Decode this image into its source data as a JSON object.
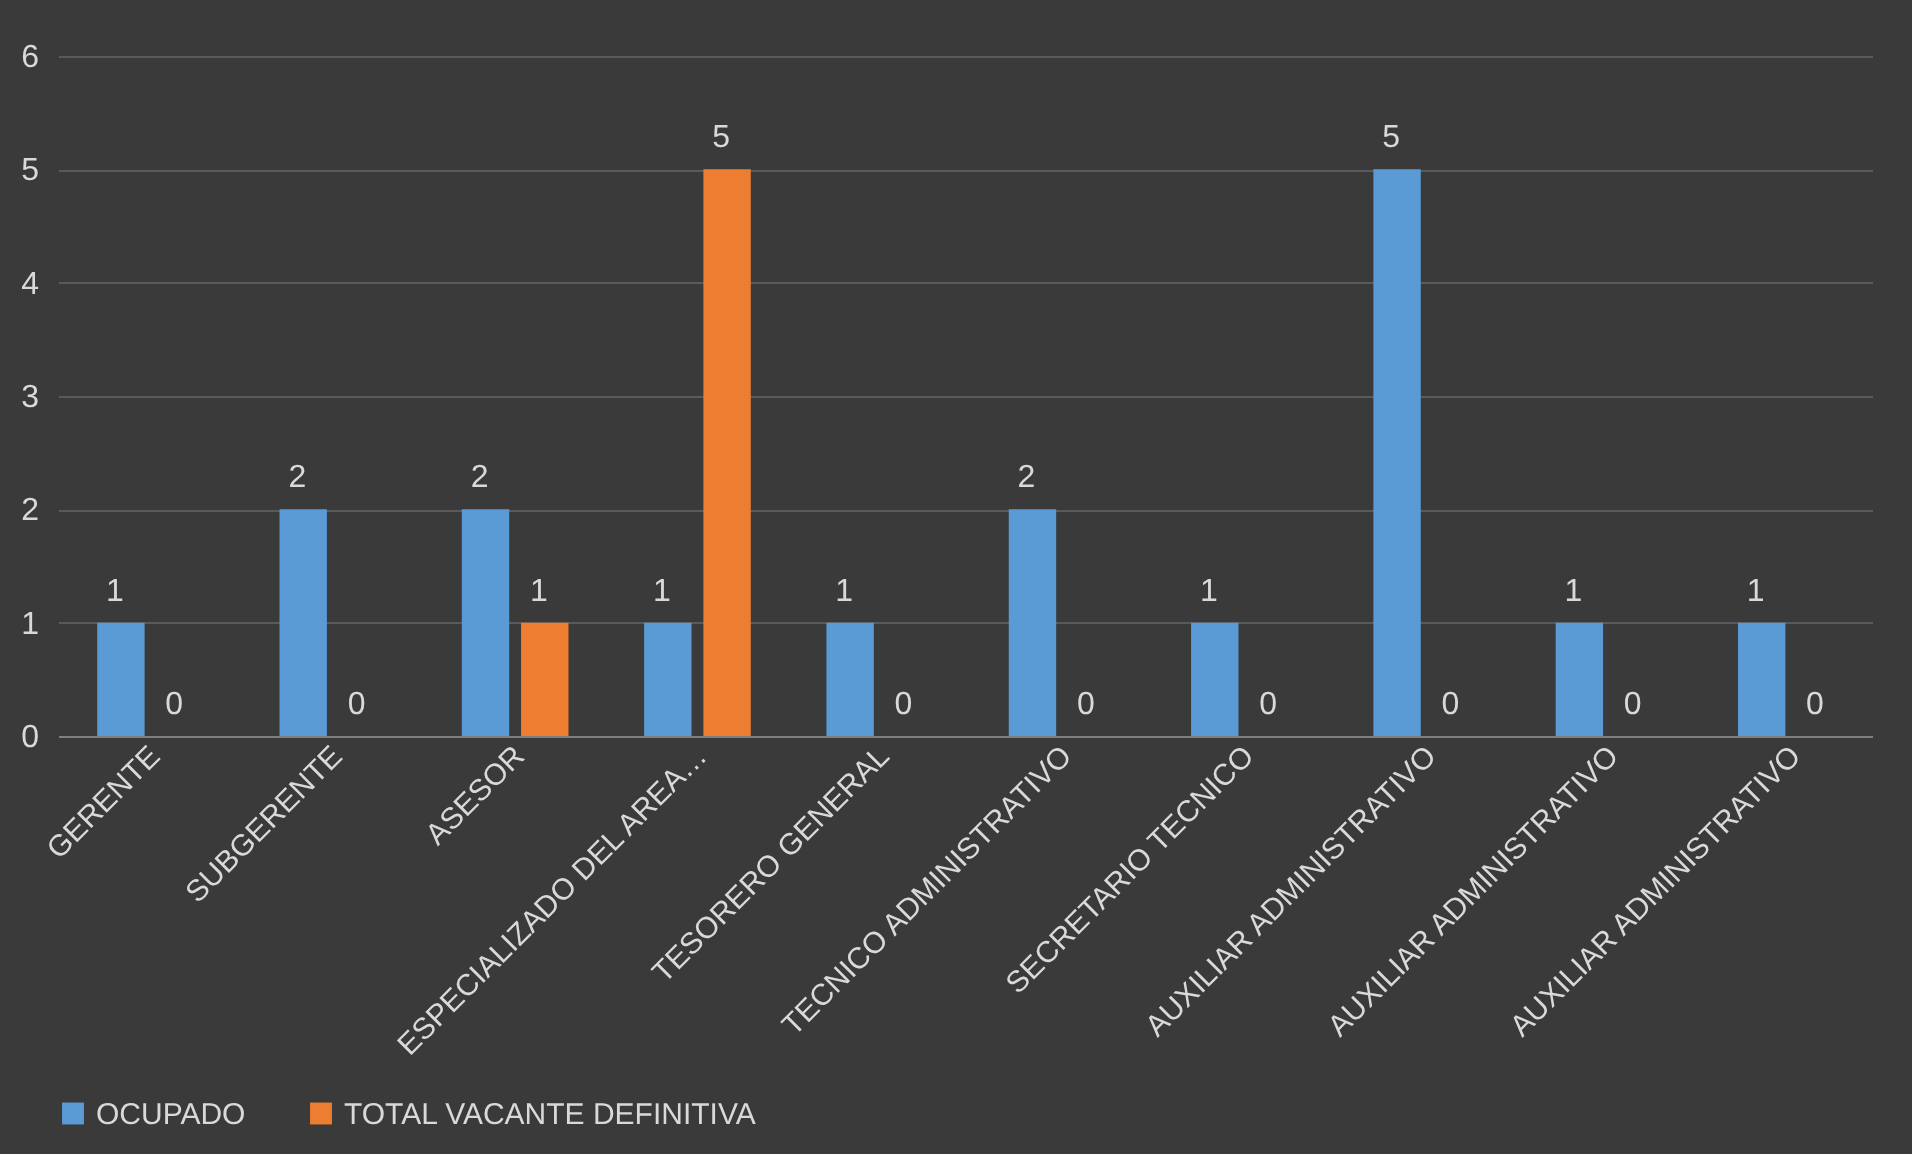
{
  "chart_data": {
    "type": "bar",
    "categories": [
      "GERENTE",
      "SUBGERENTE",
      "ASESOR",
      "ESPECIALIZADO DEL AREA…",
      "TESORERO GENERAL",
      "TECNICO ADMINISTRATIVO",
      "SECRETARIO TECNICO",
      "AUXILIAR ADMINISTRATIVO",
      "AUXILIAR ADMINISTRATIVO",
      "AUXILIAR ADMINISTRATIVO"
    ],
    "series": [
      {
        "name": "OCUPADO",
        "color": "#5b9bd5",
        "values": [
          1,
          2,
          2,
          1,
          1,
          2,
          1,
          5,
          1,
          1
        ]
      },
      {
        "name": "TOTAL VACANTE DEFINITIVA",
        "color": "#ed7d31",
        "values": [
          0,
          0,
          1,
          5,
          0,
          0,
          0,
          0,
          0,
          0
        ]
      }
    ],
    "ylim": [
      0,
      6
    ],
    "yticks": [
      0,
      1,
      2,
      3,
      4,
      5,
      6
    ],
    "grid": "y",
    "legend": "bottom",
    "data_labels": true
  }
}
